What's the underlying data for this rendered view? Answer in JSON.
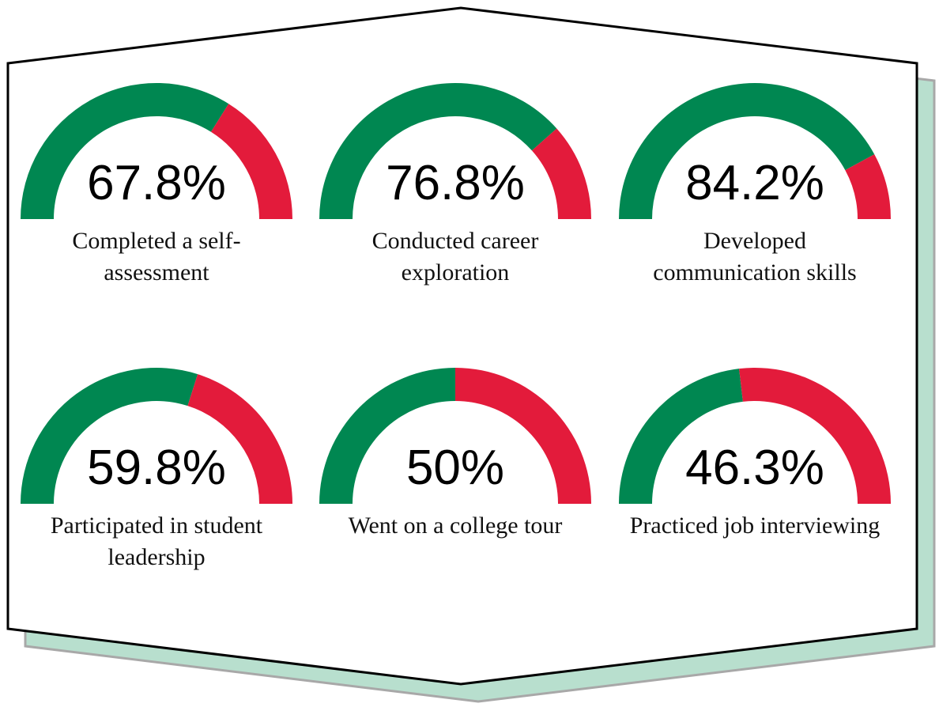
{
  "chart_data": {
    "type": "gauge",
    "categories": [
      "Completed a self-assessment",
      "Conducted career exploration",
      "Developed communication skills",
      "Participated in student leadership",
      "Went on a college tour",
      "Practiced job interviewing"
    ],
    "values": [
      67.8,
      76.8,
      84.2,
      59.8,
      50,
      46.3
    ],
    "value_labels": [
      "67.8%",
      "76.8%",
      "84.2%",
      "59.8%",
      "50%",
      "46.3%"
    ],
    "ylim": [
      0,
      100
    ],
    "color": "#008751",
    "remainder_color": "#e31b3b"
  }
}
